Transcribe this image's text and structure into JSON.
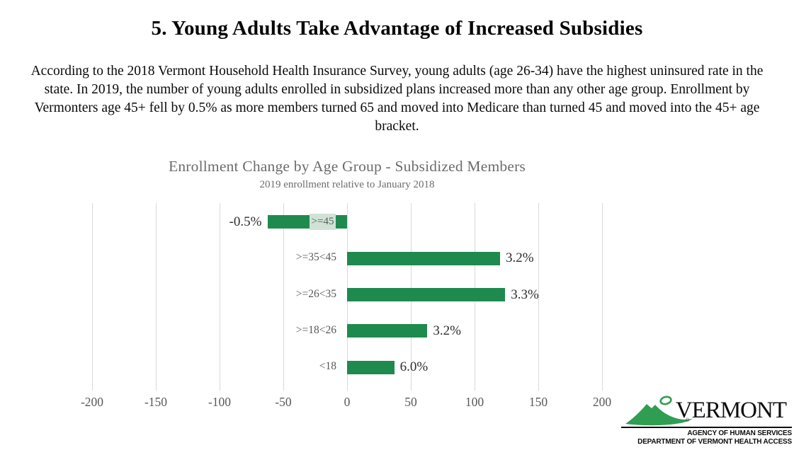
{
  "header": {
    "title": "5. Young Adults Take Advantage of Increased Subsidies"
  },
  "intro": {
    "text": "According to the 2018 Vermont Household Health Insurance Survey, young adults (age 26-34) have the highest uninsured rate in the state. In 2019, the number of young adults enrolled in subsidized plans increased more than any other age group. Enrollment by Vermonters age 45+ fell by 0.5% as more members turned 65 and moved into Medicare than turned 45 and moved into the 45+ age bracket."
  },
  "chart_data": {
    "type": "bar",
    "orientation": "horizontal",
    "title": "Enrollment Change by Age Group - Subsidized Members",
    "subtitle": "2019 enrollment relative to January 2018",
    "categories": [
      ">=45",
      ">=35<45",
      ">=26<35",
      ">=18<26",
      "<18"
    ],
    "values_members": [
      -62,
      120,
      124,
      63,
      37
    ],
    "percent_labels": [
      "-0.5%",
      "3.2%",
      "3.3%",
      "3.2%",
      "6.0%"
    ],
    "xlim": [
      -200,
      200
    ],
    "x_ticks": [
      -200,
      -150,
      -100,
      -50,
      0,
      50,
      100,
      150,
      200
    ],
    "grid": true,
    "legend": "none",
    "bar_color": "#1f8a4e",
    "gridline_color": "#d9d9d9",
    "category_chip_bg": "#cfe2d5"
  },
  "logo": {
    "brand": "VERMONT",
    "registered_mark": "®",
    "line1": "AGENCY OF HUMAN SERVICES",
    "line2": "DEPARTMENT OF VERMONT HEALTH ACCESS",
    "green": "#2f9e52"
  }
}
